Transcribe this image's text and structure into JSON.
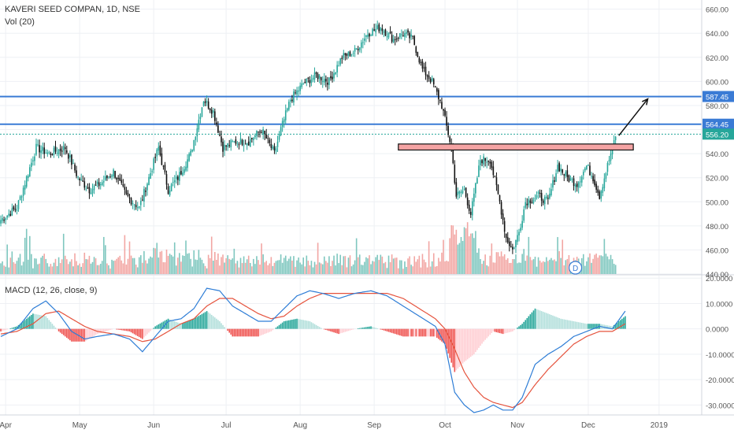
{
  "header": {
    "symbol_line": "KAVERI SEED COMPAN, 1D, NSE",
    "volume_label": "Vol (20)"
  },
  "macd": {
    "label": "MACD (12, 26, close, 9)"
  },
  "colors": {
    "up": "#26a69a",
    "down": "#111111",
    "level_line": "#3a7bd5",
    "zone_fill": "#f4a3a3",
    "zone_border": "#111111",
    "macd_line": "#2e7dd6",
    "signal_line": "#e5533d",
    "hist_up": "#26a69a",
    "hist_down": "#ef5350",
    "hist_up_light": "#b2dfdb",
    "hist_down_light": "#ffcdd2",
    "vol_up": "#7fc7bf",
    "vol_down": "#f2a6a3",
    "current_price_line": "#26a69a"
  },
  "chart_data": [
    {
      "type": "candlestick",
      "title": "KAVERI SEED COMPAN, 1D, NSE",
      "ylim": [
        440,
        665
      ],
      "y_ticks": [
        "660.00",
        "640.00",
        "620.00",
        "600.00",
        "580.00",
        "560.00",
        "540.00",
        "520.00",
        "500.00",
        "480.00",
        "460.00",
        "440.00"
      ],
      "y_tick_values": [
        660,
        640,
        620,
        600,
        580,
        560,
        540,
        520,
        500,
        480,
        460,
        440
      ],
      "x_ticks": [
        "Apr",
        "May",
        "Jun",
        "Jul",
        "Aug",
        "Sep",
        "Oct",
        "Nov",
        "Dec",
        "2019"
      ],
      "x_tick_index": [
        3,
        49,
        95,
        140,
        186,
        232,
        276,
        321,
        365,
        409
      ],
      "total_slots": 436,
      "close_anchors": [
        [
          0,
          485
        ],
        [
          10,
          495
        ],
        [
          22,
          545
        ],
        [
          30,
          540
        ],
        [
          40,
          545
        ],
        [
          48,
          520
        ],
        [
          55,
          510
        ],
        [
          62,
          515
        ],
        [
          70,
          525
        ],
        [
          78,
          505
        ],
        [
          86,
          495
        ],
        [
          92,
          520
        ],
        [
          98,
          545
        ],
        [
          104,
          510
        ],
        [
          110,
          520
        ],
        [
          118,
          540
        ],
        [
          126,
          585
        ],
        [
          132,
          575
        ],
        [
          138,
          545
        ],
        [
          146,
          550
        ],
        [
          154,
          550
        ],
        [
          162,
          560
        ],
        [
          170,
          540
        ],
        [
          174,
          560
        ],
        [
          180,
          585
        ],
        [
          188,
          598
        ],
        [
          196,
          605
        ],
        [
          204,
          600
        ],
        [
          212,
          620
        ],
        [
          220,
          625
        ],
        [
          228,
          640
        ],
        [
          236,
          645
        ],
        [
          244,
          635
        ],
        [
          250,
          640
        ],
        [
          256,
          635
        ],
        [
          262,
          610
        ],
        [
          268,
          600
        ],
        [
          274,
          580
        ],
        [
          280,
          545
        ],
        [
          283,
          505
        ],
        [
          288,
          510
        ],
        [
          292,
          490
        ],
        [
          298,
          535
        ],
        [
          304,
          535
        ],
        [
          310,
          500
        ],
        [
          314,
          470
        ],
        [
          318,
          460
        ],
        [
          322,
          475
        ],
        [
          326,
          500
        ],
        [
          334,
          505
        ],
        [
          340,
          500
        ],
        [
          346,
          530
        ],
        [
          352,
          520
        ],
        [
          358,
          515
        ],
        [
          364,
          530
        ],
        [
          368,
          520
        ],
        [
          372,
          505
        ],
        [
          378,
          535
        ],
        [
          382,
          555
        ]
      ],
      "horizontal_levels": [
        {
          "label": "587.45",
          "value": 587.45,
          "color": "#3a7bd5"
        },
        {
          "label": "564.45",
          "value": 564.45,
          "color": "#3a7bd5"
        }
      ],
      "current_price": {
        "label": "556.20",
        "value": 556.2,
        "color": "#26a69a"
      },
      "resistance_zone": {
        "from_index": 247,
        "to_index": 393,
        "low": 543,
        "high": 548
      },
      "arrow": {
        "from_index": 384,
        "from_value": 555,
        "to_index": 402,
        "to_value": 587.45
      },
      "event_marker": {
        "label": "D",
        "index": 357
      }
    },
    {
      "type": "bar",
      "title": "Vol (20)",
      "series": [
        {
          "values_description": "daily volume bars colored by candle direction"
        }
      ]
    },
    {
      "type": "line",
      "title": "MACD (12, 26, close, 9)",
      "ylim": [
        -33,
        21
      ],
      "y_ticks": [
        "20.0000",
        "10.0000",
        "0.0000",
        "-10.0000",
        "-20.0000",
        "-30.0000"
      ],
      "y_tick_values": [
        20,
        10,
        0,
        -10,
        -20,
        -30
      ],
      "macd_anchors": [
        [
          0,
          -3
        ],
        [
          10,
          0
        ],
        [
          20,
          8
        ],
        [
          28,
          11
        ],
        [
          36,
          6
        ],
        [
          44,
          -1
        ],
        [
          52,
          -4
        ],
        [
          60,
          -3
        ],
        [
          70,
          -2
        ],
        [
          80,
          -4
        ],
        [
          88,
          -9
        ],
        [
          96,
          -3
        ],
        [
          104,
          3
        ],
        [
          112,
          4
        ],
        [
          120,
          8
        ],
        [
          128,
          16
        ],
        [
          136,
          15
        ],
        [
          144,
          9
        ],
        [
          152,
          6
        ],
        [
          160,
          3
        ],
        [
          168,
          3
        ],
        [
          176,
          8
        ],
        [
          184,
          13
        ],
        [
          192,
          15
        ],
        [
          200,
          14
        ],
        [
          210,
          12
        ],
        [
          220,
          14
        ],
        [
          230,
          15
        ],
        [
          240,
          13
        ],
        [
          250,
          9
        ],
        [
          260,
          5
        ],
        [
          270,
          1
        ],
        [
          276,
          -6
        ],
        [
          282,
          -25
        ],
        [
          288,
          -30
        ],
        [
          294,
          -33
        ],
        [
          300,
          -32
        ],
        [
          306,
          -30
        ],
        [
          312,
          -32
        ],
        [
          318,
          -32
        ],
        [
          324,
          -27
        ],
        [
          332,
          -14
        ],
        [
          340,
          -10
        ],
        [
          348,
          -7
        ],
        [
          356,
          -3
        ],
        [
          364,
          -1
        ],
        [
          372,
          1
        ],
        [
          380,
          0
        ],
        [
          388,
          7
        ]
      ],
      "signal_anchors": [
        [
          0,
          -2
        ],
        [
          10,
          -1
        ],
        [
          20,
          2
        ],
        [
          28,
          6
        ],
        [
          36,
          7
        ],
        [
          44,
          4
        ],
        [
          52,
          1
        ],
        [
          60,
          -1
        ],
        [
          70,
          -2
        ],
        [
          80,
          -3
        ],
        [
          88,
          -5
        ],
        [
          96,
          -4
        ],
        [
          104,
          -1
        ],
        [
          112,
          2
        ],
        [
          120,
          4
        ],
        [
          128,
          9
        ],
        [
          136,
          12
        ],
        [
          144,
          12
        ],
        [
          152,
          9
        ],
        [
          160,
          6
        ],
        [
          168,
          4
        ],
        [
          176,
          5
        ],
        [
          184,
          9
        ],
        [
          192,
          12
        ],
        [
          200,
          14
        ],
        [
          210,
          14
        ],
        [
          220,
          14
        ],
        [
          230,
          14
        ],
        [
          240,
          14
        ],
        [
          250,
          12
        ],
        [
          260,
          8
        ],
        [
          270,
          4
        ],
        [
          276,
          0
        ],
        [
          282,
          -8
        ],
        [
          288,
          -17
        ],
        [
          294,
          -23
        ],
        [
          300,
          -27
        ],
        [
          306,
          -29
        ],
        [
          312,
          -30
        ],
        [
          318,
          -31
        ],
        [
          324,
          -29
        ],
        [
          332,
          -22
        ],
        [
          340,
          -16
        ],
        [
          348,
          -11
        ],
        [
          356,
          -6
        ],
        [
          364,
          -3
        ],
        [
          372,
          -1
        ],
        [
          380,
          -1
        ],
        [
          388,
          2
        ]
      ]
    }
  ]
}
